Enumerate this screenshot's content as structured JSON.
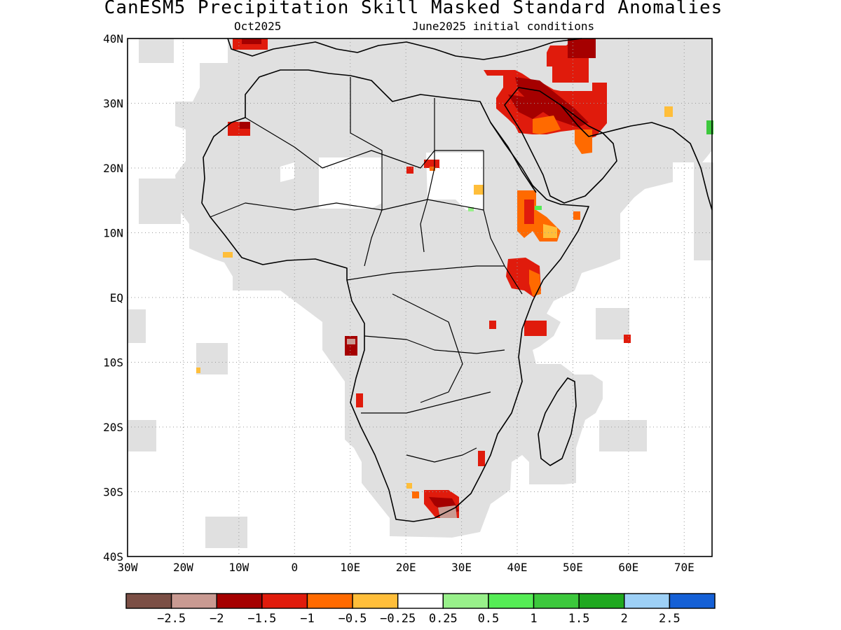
{
  "header": {
    "title": "CanESM5 Precipitation Skill Masked Standard Anomalies",
    "valid_month": "Oct2025",
    "init_conditions": "June2025 initial conditions"
  },
  "map": {
    "region": "Africa and surroundings",
    "lon_range": [
      -30,
      75
    ],
    "lat_range": [
      -40,
      40
    ],
    "latitude_ticks": [
      "40N",
      "30N",
      "20N",
      "10N",
      "EQ",
      "10S",
      "20S",
      "30S",
      "40S"
    ],
    "longitude_ticks": [
      "30W",
      "20W",
      "10W",
      "0",
      "10E",
      "20E",
      "30E",
      "40E",
      "50E",
      "60E",
      "70E"
    ],
    "mask_color": "#e0e0e0",
    "gridlines": "dotted"
  },
  "colorbar": {
    "colors": [
      "#7b4f45",
      "#c99a92",
      "#a50000",
      "#e01b0c",
      "#ff6a00",
      "#ffbe3a",
      "#ffffff",
      "#98f08a",
      "#55ec55",
      "#3cc83c",
      "#1fa81f",
      "#9dd0f6",
      "#1560d6"
    ],
    "labels": [
      "−2.5",
      "−2",
      "−1.5",
      "−1",
      "−0.5",
      "−0.25",
      "0.25",
      "0.5",
      "1",
      "1.5",
      "2",
      "2.5"
    ]
  }
}
